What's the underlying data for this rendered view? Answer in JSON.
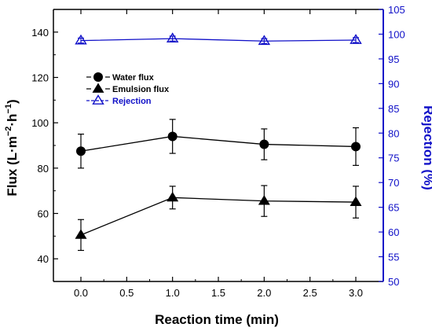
{
  "chart_data": {
    "type": "line",
    "x": [
      0.0,
      1.0,
      2.0,
      3.0
    ],
    "xlabel": "Reaction time (min)",
    "xlim": [
      -0.3,
      3.3
    ],
    "xticks": [
      "0.0",
      "0.5",
      "1.0",
      "1.5",
      "2.0",
      "2.5",
      "3.0"
    ],
    "ylabel_left": {
      "parts": [
        "Flux (L·m",
        "−2",
        "·h",
        "−1",
        ")"
      ]
    },
    "ylim_left": [
      30,
      150
    ],
    "yticks_left": [
      "40",
      "60",
      "80",
      "100",
      "120",
      "140"
    ],
    "ylabel_right": "Rejection (%)",
    "ylim_right": [
      50,
      105
    ],
    "yticks_right": [
      "50",
      "55",
      "60",
      "65",
      "70",
      "75",
      "80",
      "85",
      "90",
      "95",
      "100",
      "105"
    ],
    "grid": false,
    "legend_position": "upper-left",
    "series": [
      {
        "name": "Water flux",
        "axis": "left",
        "marker": "circle",
        "color": "#000000",
        "values": [
          87.5,
          94.0,
          90.5,
          89.5
        ],
        "error": [
          7.5,
          7.5,
          6.8,
          8.3
        ]
      },
      {
        "name": "Emulsion flux",
        "axis": "left",
        "marker": "triangle",
        "color": "#000000",
        "values": [
          50.5,
          67.0,
          65.5,
          65.0
        ],
        "error": [
          6.8,
          5.0,
          6.8,
          7.0
        ]
      },
      {
        "name": "Rejection",
        "axis": "right",
        "marker": "open-triangle",
        "color": "#1010c8",
        "values": [
          98.7,
          99.1,
          98.6,
          98.8
        ],
        "error": [
          0.5,
          0.5,
          0.5,
          0.5
        ]
      }
    ]
  }
}
